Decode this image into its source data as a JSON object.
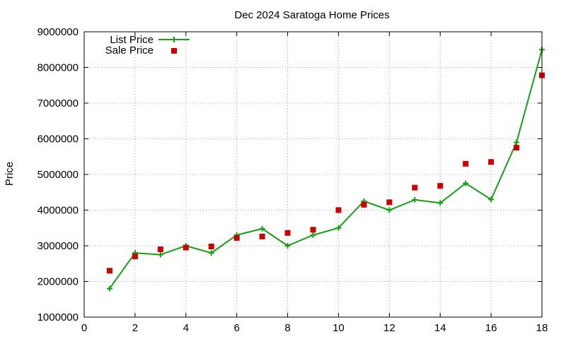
{
  "chart_data": {
    "type": "line",
    "title": "Dec 2024 Saratoga Home Prices",
    "xlabel": "",
    "ylabel": "Price",
    "xlim": [
      0,
      18
    ],
    "ylim": [
      1000000,
      9000000
    ],
    "x_ticks": [
      0,
      2,
      4,
      6,
      8,
      10,
      12,
      14,
      16,
      18
    ],
    "y_ticks": [
      1000000,
      2000000,
      3000000,
      4000000,
      5000000,
      6000000,
      7000000,
      8000000,
      9000000
    ],
    "grid": true,
    "legend_position": "top-left",
    "series": [
      {
        "name": "List Price",
        "style": "line-with-plus-markers",
        "color": "#16a016",
        "x": [
          1,
          2,
          3,
          4,
          5,
          6,
          7,
          8,
          9,
          10,
          11,
          12,
          13,
          14,
          15,
          16,
          17,
          18
        ],
        "values": [
          1800000,
          2800000,
          2750000,
          3000000,
          2800000,
          3300000,
          3480000,
          3000000,
          3300000,
          3500000,
          4250000,
          4000000,
          4290000,
          4200000,
          4750000,
          4300000,
          5900000,
          8500000
        ]
      },
      {
        "name": "Sale Price",
        "style": "square-markers",
        "color": "#cc0000",
        "x": [
          1,
          2,
          3,
          4,
          5,
          6,
          7,
          8,
          9,
          10,
          11,
          12,
          13,
          14,
          15,
          16,
          17,
          18
        ],
        "values": [
          2300000,
          2700000,
          2900000,
          2950000,
          2980000,
          3220000,
          3260000,
          3360000,
          3450000,
          4000000,
          4150000,
          4220000,
          4630000,
          4680000,
          5300000,
          5350000,
          5750000,
          7780000
        ]
      }
    ]
  }
}
